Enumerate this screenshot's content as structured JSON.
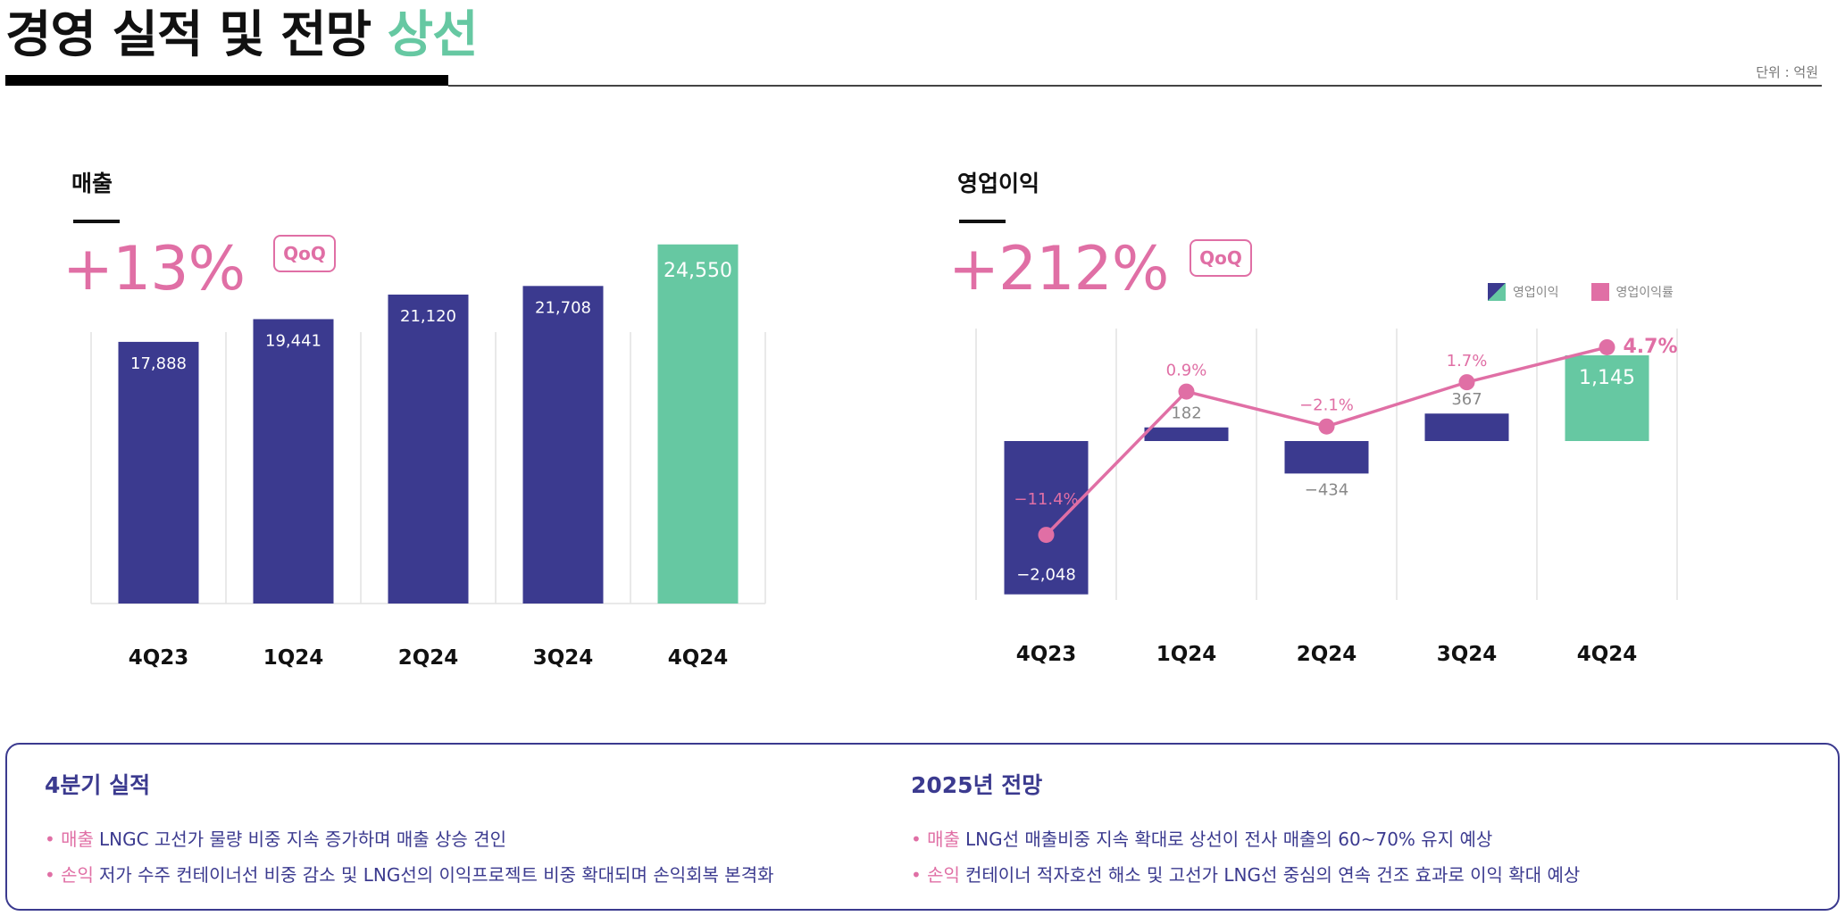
{
  "header": {
    "title_main": "경영 실적 및 전망",
    "title_accent": "상선",
    "unit": "단위 : 억원"
  },
  "revenue": {
    "title": "매출",
    "change": "+13%",
    "badge": "QoQ"
  },
  "op_income": {
    "title": "영업이익",
    "change": "+212%",
    "badge": "QoQ",
    "legend": {
      "bar": "영업이익",
      "line": "영업이익률"
    }
  },
  "colors": {
    "bar": "#3b3a8f",
    "highlight": "#66c8a2",
    "pink": "#e06fa5",
    "grid": "#e2e2e2"
  },
  "chart_data": [
    {
      "type": "bar",
      "title": "매출",
      "categories": [
        "4Q23",
        "1Q24",
        "2Q24",
        "3Q24",
        "4Q24"
      ],
      "values": [
        17888,
        19441,
        21120,
        21708,
        24550
      ],
      "value_labels": [
        "17,888",
        "19,441",
        "21,120",
        "21,708",
        "24,550"
      ],
      "ylim": [
        0,
        26000
      ]
    },
    {
      "type": "bar",
      "title": "영업이익",
      "categories": [
        "4Q23",
        "1Q24",
        "2Q24",
        "3Q24",
        "4Q24"
      ],
      "values": [
        -2048,
        182,
        -434,
        367,
        1145
      ],
      "value_labels": [
        "−2,048",
        "182",
        "−434",
        "367",
        "1,145"
      ],
      "ylim": [
        -2200,
        1300
      ],
      "series_line": {
        "name": "영업이익률",
        "values": [
          -11.4,
          0.9,
          -2.1,
          1.7,
          4.7
        ],
        "value_labels": [
          "−11.4%",
          "0.9%",
          "−2.1%",
          "1.7%",
          "4.7%"
        ],
        "ylim": [
          -13,
          6
        ]
      }
    }
  ],
  "summary": {
    "left": {
      "heading": "4분기 실적",
      "rows": [
        {
          "label": "• 매출",
          "text": "LNGC 고선가 물량 비중 지속 증가하며 매출 상승 견인"
        },
        {
          "label": "• 손익",
          "text": "저가 수주 컨테이너선 비중 감소 및 LNG선의 이익프로젝트 비중 확대되며 손익회복 본격화"
        }
      ]
    },
    "right": {
      "heading": "2025년 전망",
      "rows": [
        {
          "label": "• 매출",
          "text": "LNG선 매출비중 지속 확대로 상선이 전사 매출의 60~70% 유지 예상"
        },
        {
          "label": "• 손익",
          "text": "컨테이너 적자호선 해소 및 고선가 LNG선  중심의 연속 건조 효과로 이익 확대 예상"
        }
      ]
    }
  }
}
